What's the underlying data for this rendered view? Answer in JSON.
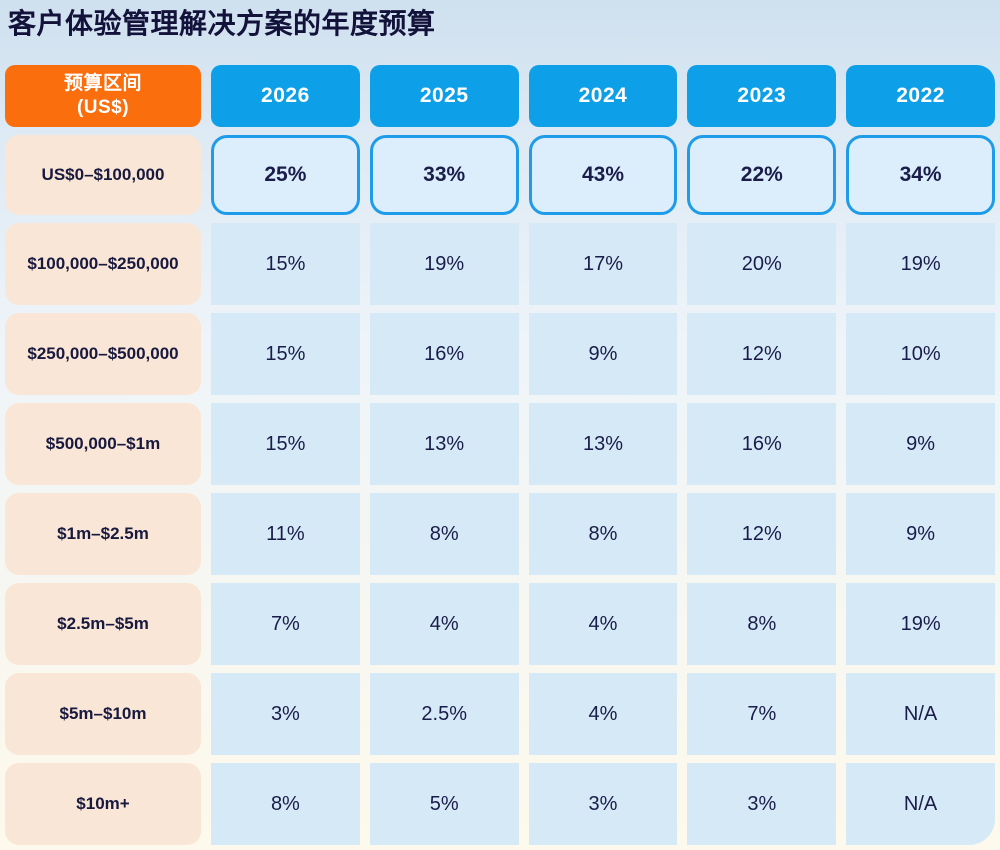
{
  "title": "客户体验管理解决方案的年度预算",
  "table": {
    "corner_header": {
      "line1": "预算区间",
      "line2": "(US$)"
    },
    "year_columns": [
      "2026",
      "2025",
      "2024",
      "2023",
      "2022"
    ],
    "rows": [
      {
        "label": "US$0–$100,000",
        "highlight": true,
        "values": [
          "25%",
          "33%",
          "43%",
          "22%",
          "34%"
        ]
      },
      {
        "label": "$100,000–$250,000",
        "highlight": false,
        "values": [
          "15%",
          "19%",
          "17%",
          "20%",
          "19%"
        ]
      },
      {
        "label": "$250,000–$500,000",
        "highlight": false,
        "values": [
          "15%",
          "16%",
          "9%",
          "12%",
          "10%"
        ]
      },
      {
        "label": "$500,000–$1m",
        "highlight": false,
        "values": [
          "15%",
          "13%",
          "13%",
          "16%",
          "9%"
        ]
      },
      {
        "label": "$1m–$2.5m",
        "highlight": false,
        "values": [
          "11%",
          "8%",
          "8%",
          "12%",
          "9%"
        ]
      },
      {
        "label": "$2.5m–$5m",
        "highlight": false,
        "values": [
          "7%",
          "4%",
          "4%",
          "8%",
          "19%"
        ]
      },
      {
        "label": "$5m–$10m",
        "highlight": false,
        "values": [
          "3%",
          "2.5%",
          "4%",
          "7%",
          "N/A"
        ]
      },
      {
        "label": "$10m+",
        "highlight": false,
        "values": [
          "8%",
          "5%",
          "3%",
          "3%",
          "N/A"
        ]
      }
    ]
  },
  "colors": {
    "accent_orange": "#FA6E0E",
    "accent_blue": "#0D9FE8",
    "highlight_border": "#1E9CE9",
    "highlight_fill": "#DCEDFB",
    "cell_blue": "#D6E9F7",
    "label_peach": "#FAE6D6",
    "text_navy": "#14153E",
    "background_top": "#CFE0EF",
    "background_bottom": "#FDF9EC"
  },
  "chart_data": {
    "type": "table",
    "title": "客户体验管理解决方案的年度预算",
    "columns": [
      "预算区间 (US$)",
      "2026",
      "2025",
      "2024",
      "2023",
      "2022"
    ],
    "rows": [
      [
        "US$0–$100,000",
        "25%",
        "33%",
        "43%",
        "22%",
        "34%"
      ],
      [
        "$100,000–$250,000",
        "15%",
        "19%",
        "17%",
        "20%",
        "19%"
      ],
      [
        "$250,000–$500,000",
        "15%",
        "16%",
        "9%",
        "12%",
        "10%"
      ],
      [
        "$500,000–$1m",
        "15%",
        "13%",
        "13%",
        "16%",
        "9%"
      ],
      [
        "$1m–$2.5m",
        "11%",
        "8%",
        "8%",
        "12%",
        "9%"
      ],
      [
        "$2.5m–$5m",
        "7%",
        "4%",
        "4%",
        "8%",
        "19%"
      ],
      [
        "$5m–$10m",
        "3%",
        "2.5%",
        "4%",
        "7%",
        "N/A"
      ],
      [
        "$10m+",
        "8%",
        "5%",
        "3%",
        "3%",
        "N/A"
      ]
    ],
    "highlighted_row_index": 0,
    "legend_position": "none",
    "grid": false
  }
}
